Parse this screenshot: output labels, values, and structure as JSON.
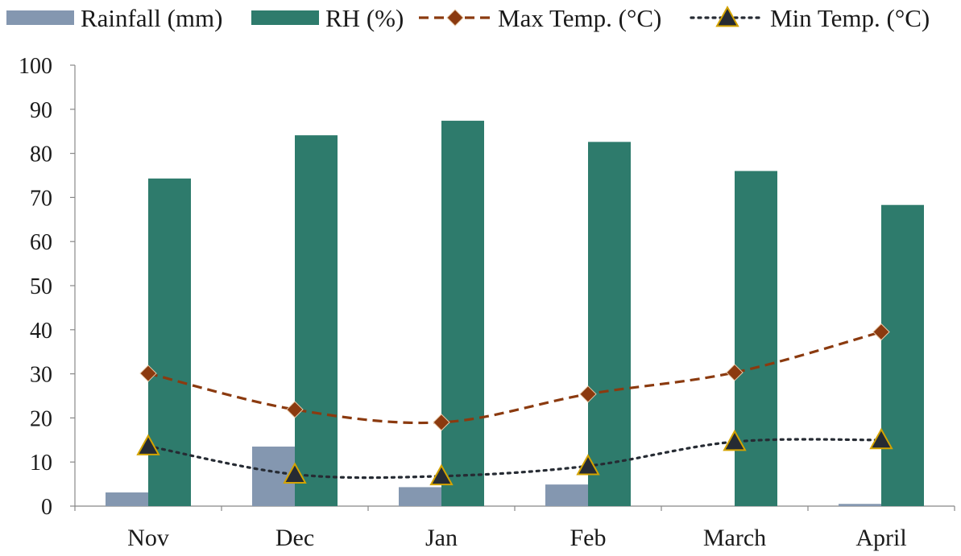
{
  "chart_data": {
    "type": "bar",
    "categories": [
      "Nov",
      "Dec",
      "Jan",
      "Feb",
      "March",
      "April"
    ],
    "ylim": [
      0,
      100
    ],
    "yticks": [
      0,
      10,
      20,
      30,
      40,
      50,
      60,
      70,
      80,
      90,
      100
    ],
    "legend_position": "top",
    "series": [
      {
        "name": "Rainfall (mm)",
        "kind": "bar",
        "color": "#8497b0",
        "values": [
          3.1,
          13.5,
          4.3,
          4.9,
          0,
          0.5
        ]
      },
      {
        "name": "RH (%)",
        "kind": "bar",
        "color": "#2e7b6c",
        "values": [
          74.3,
          84.1,
          87.4,
          82.6,
          76.0,
          68.3
        ]
      },
      {
        "name": "Max Temp. (°C)",
        "kind": "line",
        "style": "dashed",
        "marker": "diamond",
        "color": "#8b3a0f",
        "marker_fill": "#8b3a0f",
        "values": [
          30.1,
          21.9,
          19.0,
          25.4,
          30.3,
          39.5
        ]
      },
      {
        "name": "Min Temp. (°C)",
        "kind": "line",
        "style": "dotted",
        "marker": "triangle",
        "color": "#262b33",
        "marker_fill": "#262b33",
        "marker_edge": "#d4a300",
        "values": [
          13.6,
          7.2,
          6.8,
          9.1,
          14.6,
          15.0
        ]
      }
    ]
  }
}
